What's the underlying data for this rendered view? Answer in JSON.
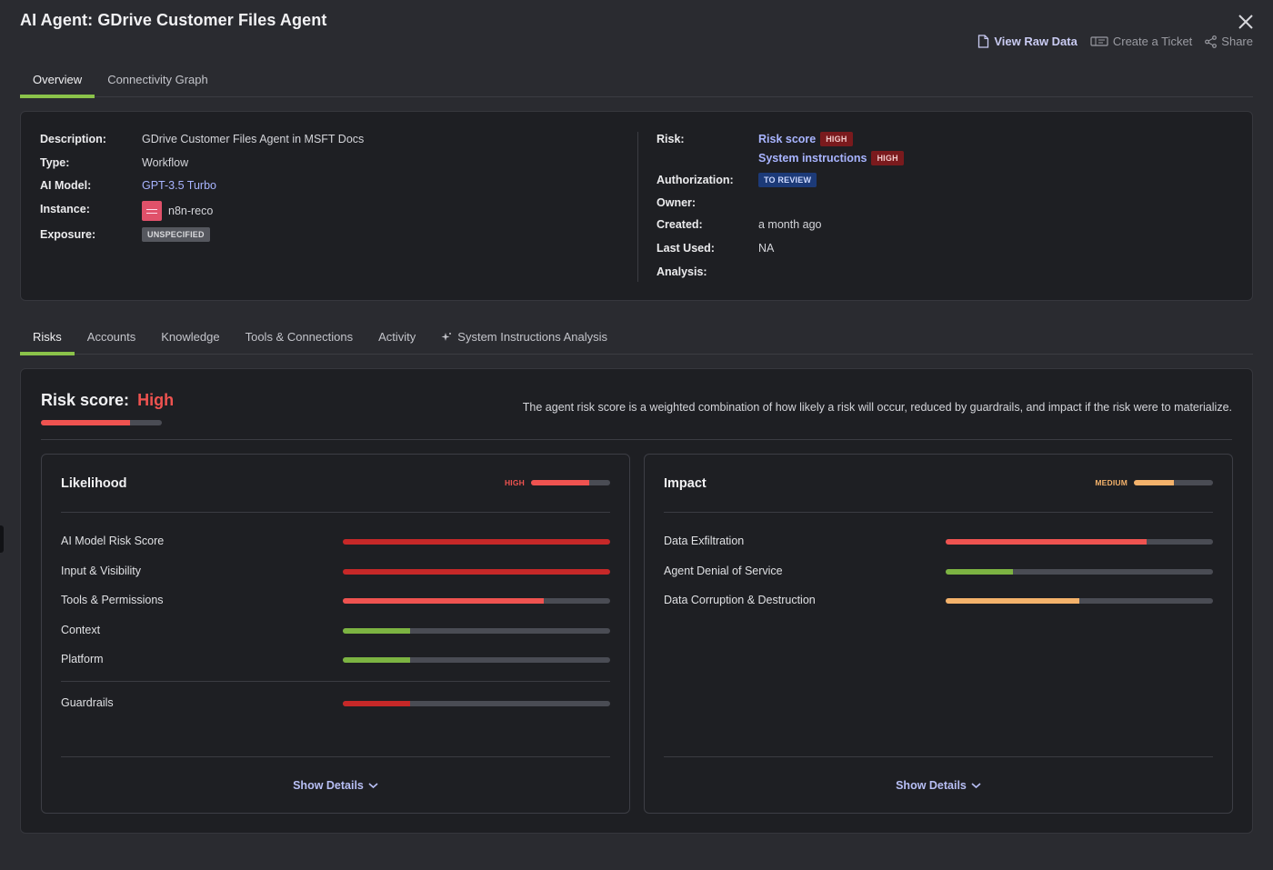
{
  "header": {
    "title": "AI Agent:  GDrive Customer Files Agent",
    "actions": {
      "view_raw": "View Raw Data",
      "create_ticket": "Create a Ticket",
      "share": "Share"
    }
  },
  "top_tabs": [
    {
      "label": "Overview",
      "active": true
    },
    {
      "label": "Connectivity Graph",
      "active": false
    }
  ],
  "info": {
    "description_label": "Description:",
    "description": "GDrive Customer Files Agent in MSFT Docs",
    "type_label": "Type:",
    "type": "Workflow",
    "model_label": "AI Model:",
    "model": "GPT-3.5 Turbo",
    "instance_label": "Instance:",
    "instance": "n8n-reco",
    "exposure_label": "Exposure:",
    "exposure": "UNSPECIFIED",
    "risk_label": "Risk:",
    "risk_score_link": "Risk score",
    "risk_score_badge": "HIGH",
    "system_instr_link": "System instructions",
    "system_instr_badge": "HIGH",
    "authorization_label": "Authorization:",
    "authorization": "TO REVIEW",
    "owner_label": "Owner:",
    "created_label": "Created:",
    "created": "a month ago",
    "last_used_label": "Last Used:",
    "last_used": "NA",
    "analysis_label": "Analysis:"
  },
  "bottom_tabs": [
    {
      "label": "Risks",
      "active": true
    },
    {
      "label": "Accounts",
      "active": false
    },
    {
      "label": "Knowledge",
      "active": false
    },
    {
      "label": "Tools & Connections",
      "active": false
    },
    {
      "label": "Activity",
      "active": false
    },
    {
      "label": "System Instructions Analysis",
      "active": false,
      "icon": "sparkle-icon"
    }
  ],
  "risk": {
    "title": "Risk score:",
    "level": "High",
    "level_fill": 0.74,
    "description": "The agent risk score is a weighted combination of how likely a risk will occur, reduced by guardrails, and impact if the risk were to materialize.",
    "likelihood": {
      "title": "Likelihood",
      "level": "HIGH",
      "level_fill": 0.74,
      "level_color": "#ef5350",
      "metrics": [
        {
          "label": "AI Model Risk Score",
          "fill": 1.0,
          "color": "#c62828"
        },
        {
          "label": "Input & Visibility",
          "fill": 1.0,
          "color": "#c62828"
        },
        {
          "label": "Tools & Permissions",
          "fill": 0.75,
          "color": "#ef5350"
        },
        {
          "label": "Context",
          "fill": 0.25,
          "color": "#7cb342"
        },
        {
          "label": "Platform",
          "fill": 0.25,
          "color": "#7cb342"
        }
      ],
      "guardrails": {
        "label": "Guardrails",
        "fill": 0.25,
        "color": "#c62828"
      },
      "show_details": "Show Details"
    },
    "impact": {
      "title": "Impact",
      "level": "MEDIUM",
      "level_fill": 0.5,
      "level_color": "#f4b26b",
      "metrics": [
        {
          "label": "Data Exfiltration",
          "fill": 0.75,
          "color": "#ef5350"
        },
        {
          "label": "Agent Denial of Service",
          "fill": 0.25,
          "color": "#7cb342"
        },
        {
          "label": "Data Corruption & Destruction",
          "fill": 0.5,
          "color": "#f4b26b"
        }
      ],
      "show_details": "Show Details"
    }
  }
}
